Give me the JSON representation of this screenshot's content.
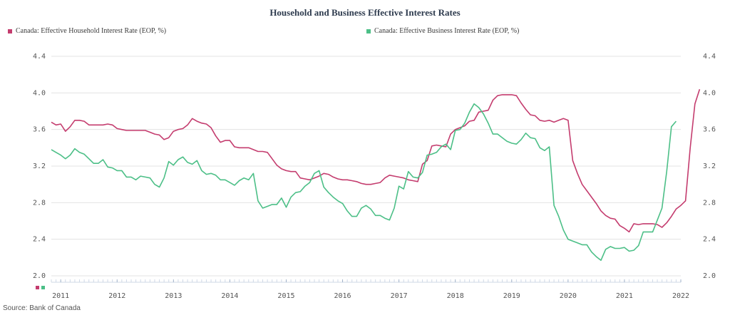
{
  "chart_data": {
    "type": "line",
    "title": "Household and Business Effective Interest Rates",
    "source": "Source: Bank of Canada",
    "y_ticks": [
      "2.0",
      "2.4",
      "2.8",
      "3.2",
      "3.6",
      "4.0",
      "4.4"
    ],
    "x_ticks": [
      "2011",
      "2012",
      "2013",
      "2014",
      "2015",
      "2016",
      "2017",
      "2018",
      "2019",
      "2020",
      "2021",
      "2022"
    ],
    "ylim": [
      2.0,
      4.4
    ],
    "xlim": [
      "2010-11",
      "2022-01"
    ],
    "grid": true,
    "legend_position": "top",
    "series": [
      {
        "name": "Canada: Effective Household Interest Rate (EOP, %)",
        "color": "#c43c6e",
        "x_start": "2010-11",
        "values": [
          3.68,
          3.65,
          3.66,
          3.58,
          3.63,
          3.7,
          3.7,
          3.69,
          3.65,
          3.65,
          3.65,
          3.65,
          3.66,
          3.65,
          3.61,
          3.6,
          3.59,
          3.59,
          3.59,
          3.59,
          3.59,
          3.57,
          3.55,
          3.54,
          3.49,
          3.51,
          3.58,
          3.6,
          3.61,
          3.65,
          3.72,
          3.69,
          3.67,
          3.66,
          3.62,
          3.53,
          3.46,
          3.48,
          3.48,
          3.41,
          3.4,
          3.4,
          3.4,
          3.38,
          3.36,
          3.36,
          3.35,
          3.28,
          3.21,
          3.17,
          3.15,
          3.14,
          3.14,
          3.07,
          3.06,
          3.05,
          3.07,
          3.09,
          3.12,
          3.11,
          3.08,
          3.06,
          3.05,
          3.05,
          3.04,
          3.03,
          3.01,
          3.0,
          3.0,
          3.01,
          3.02,
          3.07,
          3.1,
          3.09,
          3.08,
          3.07,
          3.05,
          3.04,
          3.03,
          3.22,
          3.26,
          3.42,
          3.43,
          3.42,
          3.41,
          3.55,
          3.6,
          3.62,
          3.64,
          3.69,
          3.7,
          3.79,
          3.8,
          3.81,
          3.92,
          3.97,
          3.98,
          3.98,
          3.98,
          3.97,
          3.89,
          3.82,
          3.76,
          3.75,
          3.7,
          3.69,
          3.7,
          3.68,
          3.7,
          3.72,
          3.7,
          3.26,
          3.12,
          3.0,
          2.93,
          2.86,
          2.79,
          2.71,
          2.66,
          2.63,
          2.62,
          2.55,
          2.52,
          2.48,
          2.57,
          2.56,
          2.57,
          2.57,
          2.57,
          2.56,
          2.53,
          2.58,
          2.65,
          2.73,
          2.77,
          2.82,
          3.4,
          3.88,
          4.04
        ]
      },
      {
        "name": "Canada: Effective Business Interest Rate (EOP, %)",
        "color": "#4cbf87",
        "x_start": "2010-11",
        "values": [
          3.38,
          3.35,
          3.32,
          3.28,
          3.32,
          3.39,
          3.35,
          3.33,
          3.28,
          3.23,
          3.23,
          3.27,
          3.19,
          3.18,
          3.15,
          3.15,
          3.08,
          3.08,
          3.05,
          3.09,
          3.08,
          3.07,
          3.0,
          2.97,
          3.07,
          3.25,
          3.21,
          3.27,
          3.3,
          3.24,
          3.22,
          3.26,
          3.15,
          3.11,
          3.12,
          3.1,
          3.05,
          3.05,
          3.02,
          2.99,
          3.04,
          3.07,
          3.05,
          3.12,
          2.82,
          2.74,
          2.76,
          2.78,
          2.78,
          2.85,
          2.75,
          2.86,
          2.91,
          2.92,
          2.98,
          3.02,
          3.12,
          3.15,
          2.97,
          2.91,
          2.86,
          2.82,
          2.79,
          2.71,
          2.65,
          2.65,
          2.74,
          2.77,
          2.73,
          2.66,
          2.66,
          2.63,
          2.61,
          2.74,
          2.98,
          2.95,
          3.14,
          3.08,
          3.07,
          3.13,
          3.32,
          3.33,
          3.35,
          3.41,
          3.44,
          3.38,
          3.59,
          3.6,
          3.67,
          3.79,
          3.88,
          3.84,
          3.77,
          3.67,
          3.55,
          3.55,
          3.51,
          3.47,
          3.45,
          3.44,
          3.49,
          3.56,
          3.51,
          3.5,
          3.4,
          3.37,
          3.41,
          2.77,
          2.65,
          2.5,
          2.4,
          2.38,
          2.36,
          2.34,
          2.34,
          2.26,
          2.21,
          2.17,
          2.29,
          2.32,
          2.3,
          2.3,
          2.31,
          2.27,
          2.28,
          2.33,
          2.48,
          2.48,
          2.48,
          2.61,
          2.74,
          3.14,
          3.63,
          3.69
        ]
      }
    ]
  }
}
